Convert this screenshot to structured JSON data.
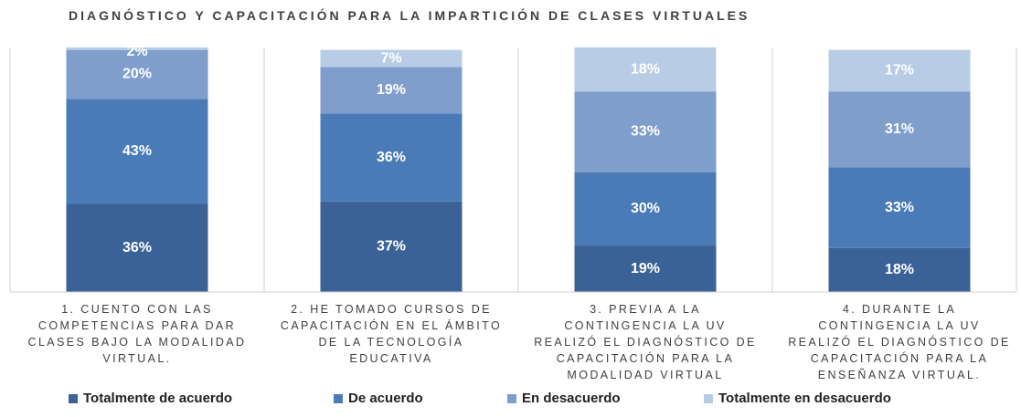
{
  "chart_data": {
    "type": "stacked_bar",
    "title": "DIAGNÓSTICO Y CAPACITACIÓN PARA LA IMPARTICIÓN DE CLASES VIRTUALES",
    "categories": [
      "1. CUENTO CON LAS\nCOMPETENCIAS PARA DAR\nCLASES BAJO LA MODALIDAD\nVIRTUAL.",
      "2. HE TOMADO CURSOS DE\nCAPACITACIÓN EN EL ÁMBITO\nDE LA TECNOLOGÍA\nEDUCATIVA",
      "3. PREVIA A LA\nCONTINGENCIA LA UV\nREALIZÓ EL DIAGNÓSTICO DE\nCAPACITACIÓN PARA LA\nMODALIDAD VIRTUAL",
      "4. DURANTE LA\nCONTINGENCIA LA UV\nREALIZÓ EL DIAGNÓSTICO DE\nCAPACITACIÓN  PARA LA\nENSEÑANZA VIRTUAL."
    ],
    "series": [
      {
        "name": "Totalmente de acuerdo",
        "color": "#3b6296",
        "values": [
          36,
          37,
          19,
          18
        ],
        "value_labels": [
          "36%",
          "37%",
          "19%",
          "18%"
        ]
      },
      {
        "name": "De acuerdo",
        "color": "#4a7bb7",
        "values": [
          43,
          36,
          30,
          33
        ],
        "value_labels": [
          "43%",
          "36%",
          "30%",
          "33%"
        ]
      },
      {
        "name": "En desacuerdo",
        "color": "#7f9ecb",
        "values": [
          20,
          19,
          33,
          31
        ],
        "value_labels": [
          "20%",
          "19%",
          "33%",
          "31%"
        ]
      },
      {
        "name": "Totalmente en desacuerdo",
        "color": "#b9cce5",
        "values": [
          2,
          7,
          18,
          17
        ],
        "value_labels": [
          "2%",
          "7%",
          "18%",
          "17%"
        ]
      }
    ],
    "ylim": [
      0,
      100
    ]
  }
}
